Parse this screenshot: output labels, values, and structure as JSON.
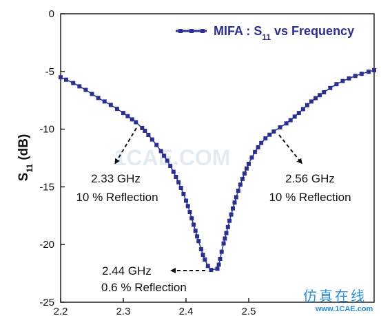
{
  "chart_data": {
    "type": "line",
    "title": "",
    "xlabel": "",
    "ylabel": {
      "main": "S",
      "sub": "11",
      "unit": " (dB)"
    },
    "xlim": [
      2.2,
      2.7
    ],
    "ylim": [
      -25,
      0
    ],
    "x_ticks": [
      {
        "value": 2.2,
        "label": "2.2"
      },
      {
        "value": 2.3,
        "label": "2.3"
      },
      {
        "value": 2.4,
        "label": "2.4"
      },
      {
        "value": 2.5,
        "label": "2.5"
      }
    ],
    "y_ticks": [
      {
        "value": 0,
        "label": "0"
      },
      {
        "value": -5,
        "label": "-5"
      },
      {
        "value": -10,
        "label": "-10"
      },
      {
        "value": -15,
        "label": "-15"
      },
      {
        "value": -20,
        "label": "-20"
      },
      {
        "value": -25,
        "label": "-25"
      }
    ],
    "grid": false,
    "legend_position": "top-right",
    "series": [
      {
        "name": "MIFA : S11 vs Frequency",
        "legend_main": "MIFA : S",
        "legend_sub": "11",
        "legend_rest": " vs Frequency",
        "color": "#2b2f8f",
        "marker": "square",
        "x": [
          2.2,
          2.22,
          2.24,
          2.26,
          2.28,
          2.3,
          2.32,
          2.33,
          2.34,
          2.36,
          2.38,
          2.4,
          2.42,
          2.43,
          2.44,
          2.45,
          2.46,
          2.48,
          2.5,
          2.52,
          2.54,
          2.56,
          2.58,
          2.6,
          2.62,
          2.64,
          2.66,
          2.68,
          2.7
        ],
        "y": [
          -5.5,
          -6.0,
          -6.6,
          -7.3,
          -7.9,
          -8.6,
          -9.4,
          -9.9,
          -10.5,
          -11.9,
          -13.7,
          -16.2,
          -19.7,
          -21.3,
          -22.2,
          -22.1,
          -19.9,
          -15.9,
          -13.0,
          -11.2,
          -10.2,
          -9.5,
          -8.6,
          -7.6,
          -6.8,
          -6.1,
          -5.6,
          -5.2,
          -4.9
        ]
      }
    ],
    "annotations": [
      {
        "line1": "2.33 GHz",
        "line2": "10 % Reflection"
      },
      {
        "line1": "2.56 GHz",
        "line2": "10 % Reflection"
      },
      {
        "line1": "2.44 GHz",
        "line2": "0.6 % Reflection"
      }
    ],
    "watermark": "1CAE.COM"
  },
  "logo": {
    "cn": "仿真在线",
    "en": "www.1CAE.com"
  }
}
